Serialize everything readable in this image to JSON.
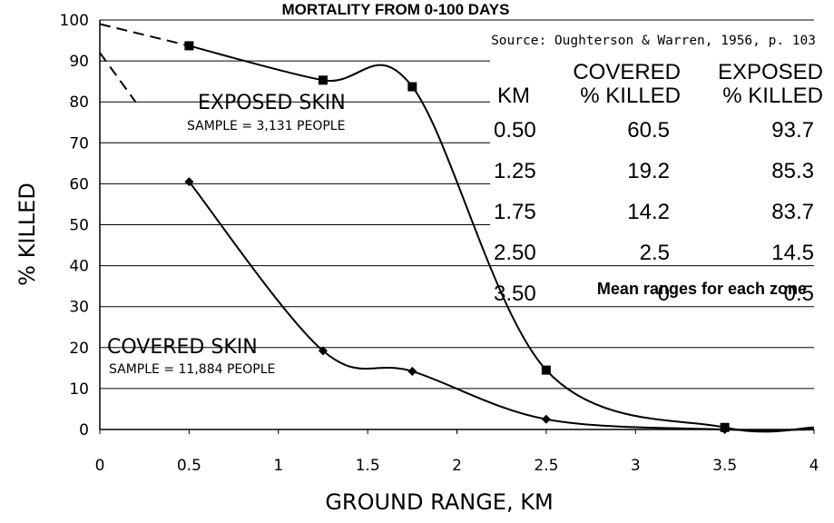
{
  "chart_data": {
    "type": "line",
    "title": "MORTALITY FROM 0-100 DAYS",
    "source": "Source: Oughterson & Warren, 1956, p. 103",
    "xlabel": "GROUND RANGE, KM",
    "ylabel": "% KILLED",
    "xlim": [
      0,
      4
    ],
    "ylim": [
      0,
      100
    ],
    "x_ticks": [
      "0",
      "0.5",
      "1",
      "1.5",
      "2",
      "2.5",
      "3",
      "3.5",
      "4"
    ],
    "y_ticks": [
      "0",
      "10",
      "20",
      "30",
      "40",
      "50",
      "60",
      "70",
      "80",
      "90",
      "100"
    ],
    "grid": "horizontal",
    "series": [
      {
        "name": "EXPOSED SKIN",
        "sample": "SAMPLE = 3,131 PEOPLE",
        "marker": "square",
        "points": [
          {
            "x": 0.5,
            "y": 93.7
          },
          {
            "x": 1.25,
            "y": 85.3
          },
          {
            "x": 1.75,
            "y": 83.7
          },
          {
            "x": 2.5,
            "y": 14.5
          },
          {
            "x": 3.5,
            "y": 0.5
          }
        ],
        "extrapolation": [
          {
            "x": 0,
            "y": 99
          },
          {
            "x": 0.5,
            "y": 93.7
          }
        ]
      },
      {
        "name": "COVERED SKIN",
        "sample": "SAMPLE = 11,884 PEOPLE",
        "marker": "diamond",
        "points": [
          {
            "x": 0.5,
            "y": 60.5
          },
          {
            "x": 1.25,
            "y": 19.2
          },
          {
            "x": 1.75,
            "y": 14.2
          },
          {
            "x": 2.5,
            "y": 2.5
          },
          {
            "x": 3.5,
            "y": 0
          }
        ],
        "extrapolation": [
          {
            "x": 0,
            "y": 92
          },
          {
            "x": 0.2,
            "y": 80
          }
        ]
      }
    ],
    "table": {
      "headers": {
        "km": "KM",
        "covered_top": "COVERED",
        "covered_bottom": "% KILLED",
        "exposed_top": "EXPOSED",
        "exposed_bottom": "% KILLED"
      },
      "rows": [
        [
          "0.50",
          "60.5",
          "93.7"
        ],
        [
          "1.25",
          "19.2",
          "85.3"
        ],
        [
          "1.75",
          "14.2",
          "83.7"
        ],
        [
          "2.50",
          "2.5",
          "14.5"
        ],
        [
          "3.50",
          "0",
          "0.5"
        ]
      ],
      "note": "Mean ranges for each zone"
    }
  }
}
